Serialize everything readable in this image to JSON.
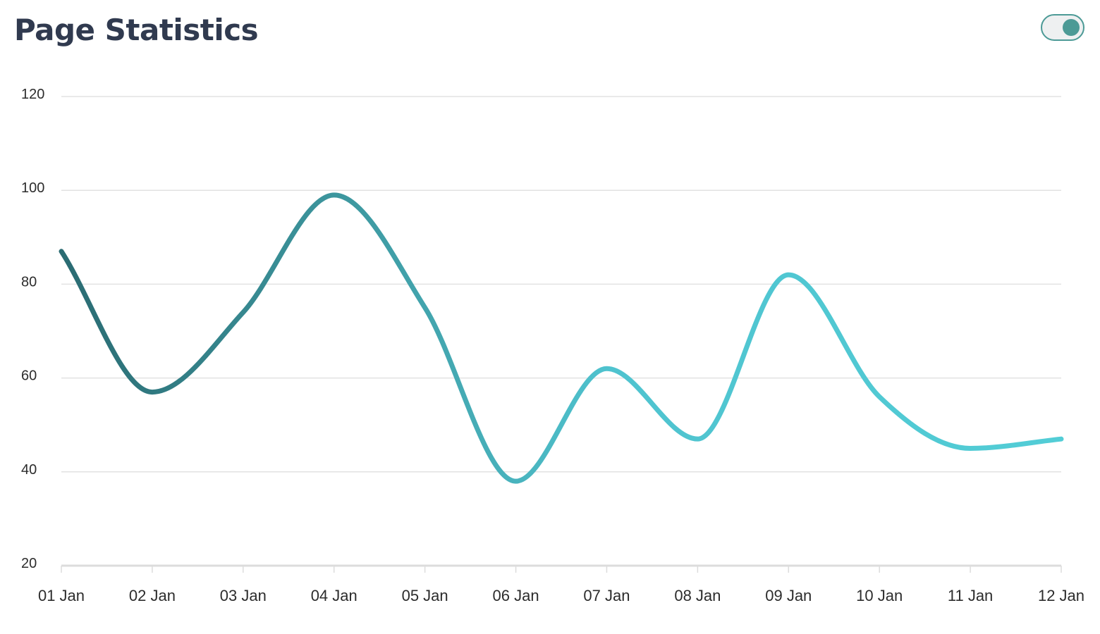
{
  "header": {
    "title": "Page Statistics"
  },
  "toggle": {
    "state": "on",
    "accent_color": "#4c9a96"
  },
  "chart_data": {
    "type": "line",
    "title": "Page Statistics",
    "xlabel": "",
    "ylabel": "",
    "categories": [
      "01 Jan",
      "02 Jan",
      "03 Jan",
      "04 Jan",
      "05 Jan",
      "06 Jan",
      "07 Jan",
      "08 Jan",
      "09 Jan",
      "10 Jan",
      "11 Jan",
      "12 Jan"
    ],
    "series": [
      {
        "values": [
          87,
          57,
          74,
          99,
          75,
          38,
          62,
          47,
          82,
          56,
          45,
          47
        ]
      }
    ],
    "ylim": [
      20,
      120
    ],
    "yticks": [
      20,
      40,
      60,
      80,
      100,
      120
    ],
    "grid": true,
    "line_gradient": [
      "#2a6b72",
      "#3e9aa2",
      "#4fc3cf",
      "#52cdd6"
    ]
  }
}
